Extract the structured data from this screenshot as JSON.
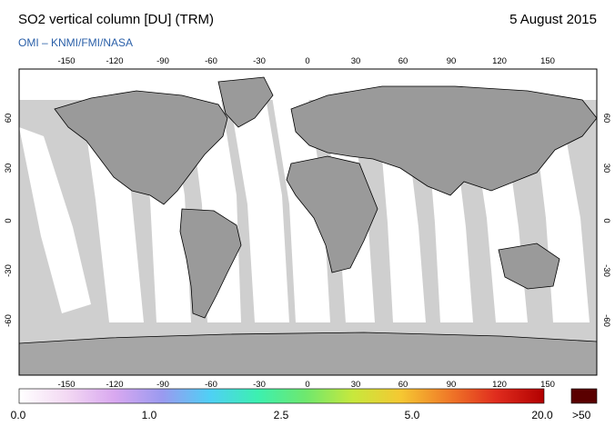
{
  "header": {
    "title": "SO2 vertical column [DU] (TRM)",
    "date": "5 August 2015",
    "credit": "OMI  –  KNMI/FMI/NASA"
  },
  "map": {
    "lon_ticks": [
      "-150",
      "-120",
      "-90",
      "-60",
      "-30",
      "0",
      "30",
      "60",
      "90",
      "120",
      "150"
    ],
    "lat_ticks": [
      "60",
      "30",
      "0",
      "-30",
      "-60"
    ],
    "background_gray": "#cfcfcf",
    "swath_white": "#ffffff",
    "land_gray": "#9a9a9a",
    "antarctica_gray": "#a6a6a6"
  },
  "colorbar": {
    "labels": [
      "0.0",
      "1.0",
      "2.5",
      "5.0",
      "20.0"
    ],
    "over_label": ">50",
    "over_color": "#5a0000",
    "gradient": [
      "#ffffff",
      "#f3d9f3",
      "#d9a8f0",
      "#9a9af0",
      "#4fd0f5",
      "#3cf0b0",
      "#6ee86e",
      "#c8e83c",
      "#f5c832",
      "#f07a28",
      "#e02c1e",
      "#b20000"
    ]
  }
}
